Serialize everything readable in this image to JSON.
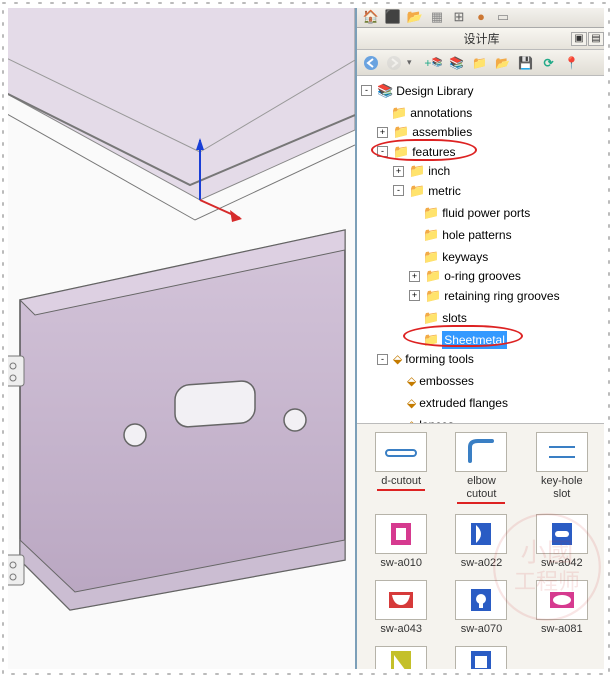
{
  "panel": {
    "title": "设计库",
    "tabbar_icons": [
      {
        "name": "home-icon",
        "glyph": "🏠",
        "color": "#c77d1a"
      },
      {
        "name": "chart-icon",
        "glyph": "📊",
        "color": "#2e8b2e"
      },
      {
        "name": "folder-open-icon",
        "glyph": "📂",
        "color": "#d9a03b"
      },
      {
        "name": "grid-icon",
        "glyph": "▦",
        "color": "#888"
      },
      {
        "name": "table-icon",
        "glyph": "⊞",
        "color": "#666"
      },
      {
        "name": "sphere-icon",
        "glyph": "●",
        "color": "#cc3333"
      },
      {
        "name": "doc-icon",
        "glyph": "▭",
        "color": "#888"
      }
    ],
    "toolbar": [
      {
        "name": "back-btn",
        "type": "nav",
        "dir": "left",
        "color": "#6aa3e0",
        "disabled": false
      },
      {
        "name": "fwd-btn",
        "type": "nav",
        "dir": "right",
        "color": "#bbb",
        "disabled": true
      },
      {
        "name": "add-lib-icon",
        "glyph": "+",
        "color": "#2a8",
        "over": "📚"
      },
      {
        "name": "library-icon",
        "glyph": "📚",
        "color": "#8d6b1f"
      },
      {
        "name": "folder-icon",
        "glyph": "📁",
        "color": "#d9a03b"
      },
      {
        "name": "open-folder-icon",
        "glyph": "📂",
        "color": "#d9a03b"
      },
      {
        "name": "save-icon",
        "glyph": "💾",
        "color": "#7c9"
      },
      {
        "name": "refresh-icon",
        "glyph": "⟳",
        "color": "#2a8"
      },
      {
        "name": "pin-icon",
        "glyph": "📌",
        "color": "#999"
      }
    ]
  },
  "tree": {
    "root": "Design Library",
    "items": [
      {
        "label": "annotations",
        "depth": 1,
        "exp": null
      },
      {
        "label": "assemblies",
        "depth": 1,
        "exp": "+"
      },
      {
        "label": "features",
        "depth": 1,
        "exp": "-",
        "circled": true
      },
      {
        "label": "inch",
        "depth": 2,
        "exp": "+"
      },
      {
        "label": "metric",
        "depth": 2,
        "exp": "-"
      },
      {
        "label": "fluid power ports",
        "depth": 3,
        "exp": null
      },
      {
        "label": "hole patterns",
        "depth": 3,
        "exp": null
      },
      {
        "label": "keyways",
        "depth": 3,
        "exp": null
      },
      {
        "label": "o-ring grooves",
        "depth": 3,
        "exp": "+"
      },
      {
        "label": "retaining ring grooves",
        "depth": 3,
        "exp": "+"
      },
      {
        "label": "slots",
        "depth": 3,
        "exp": null
      },
      {
        "label": "Sheetmetal",
        "depth": 3,
        "exp": null,
        "selected": true,
        "circled": true
      },
      {
        "label": "forming tools",
        "depth": 1,
        "exp": "-",
        "icon": "ftool"
      },
      {
        "label": "embosses",
        "depth": 2,
        "exp": null,
        "icon": "ftool"
      },
      {
        "label": "extruded flanges",
        "depth": 2,
        "exp": null,
        "icon": "ftool"
      },
      {
        "label": "lances",
        "depth": 2,
        "exp": null,
        "icon": "ftool"
      }
    ]
  },
  "thumbs": {
    "row1": [
      {
        "name": "thumb-d-cutout",
        "label1": "d-cutout",
        "label2": "",
        "svg": "dcut",
        "underline": true
      },
      {
        "name": "thumb-elbow-cutout",
        "label1": "elbow",
        "label2": "cutout",
        "svg": "elbow",
        "underline": true
      },
      {
        "name": "thumb-key-hole-slot",
        "label1": "key-hole",
        "label2": "slot",
        "svg": "keyhole"
      }
    ],
    "row2": [
      {
        "name": "thumb-sw-a010",
        "label1": "sw-a010",
        "svg": "a010",
        "color": "#d63a8f"
      },
      {
        "name": "thumb-sw-a022",
        "label1": "sw-a022",
        "svg": "a022",
        "color": "#2a5cc4"
      },
      {
        "name": "thumb-sw-a042",
        "label1": "sw-a042",
        "svg": "a042",
        "color": "#2a5cc4"
      }
    ],
    "row3": [
      {
        "name": "thumb-sw-a043",
        "label1": "sw-a043",
        "svg": "a043",
        "color": "#d63a3a"
      },
      {
        "name": "thumb-sw-a070",
        "label1": "sw-a070",
        "svg": "a070",
        "color": "#2a5cc4"
      },
      {
        "name": "thumb-sw-a081",
        "label1": "sw-a081",
        "svg": "a081",
        "color": "#d63a8f"
      }
    ],
    "row4_partial": [
      {
        "name": "thumb-partial-1",
        "svg": "partial1",
        "color": "#c4c02a"
      },
      {
        "name": "thumb-partial-2",
        "svg": "partial2",
        "color": "#2a5cc4"
      }
    ]
  },
  "viewport": {
    "bg": "#fafafa",
    "part_fill": "#c8b4ce",
    "part_stroke": "#555",
    "axis_z_color": "#1a3fd6",
    "axis_x_color": "#d62a2a"
  },
  "colors": {
    "panel_border": "#7c9fb8",
    "red_annotation": "#d22",
    "selection_bg": "#3399ff"
  }
}
